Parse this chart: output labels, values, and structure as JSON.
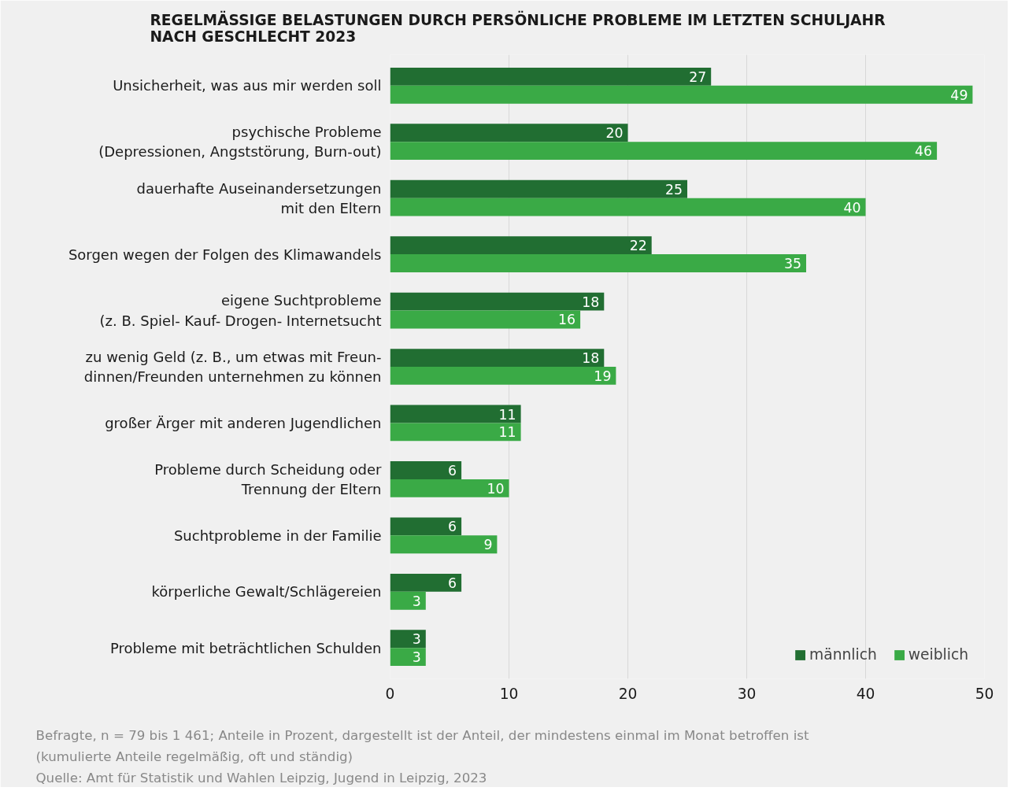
{
  "chart_data": {
    "type": "bar",
    "orientation": "horizontal",
    "title": "REGELMÄSSIGE BELASTUNGEN DURCH PERSÖNLICHE PROBLEME IM LETZTEN SCHULJAHR\nNACH GESCHLECHT 2023",
    "categories": [
      "Unsicherheit, was aus mir werden soll",
      "psychische Probleme\n(Depressionen, Angststörung, Burn-out)",
      "dauerhafte Auseinandersetzungen\nmit den Eltern",
      "Sorgen wegen der Folgen des Klimawandels",
      "eigene Suchtprobleme\n(z. B. Spiel- Kauf- Drogen- Internetsucht",
      "zu wenig Geld (z. B., um etwas mit Freun-\ndinnen/Freunden unternehmen zu können",
      "großer Ärger mit anderen Jugendlichen",
      "Probleme durch Scheidung oder\nTrennung der Eltern",
      "Suchtprobleme in der Familie",
      "körperliche Gewalt/Schlägereien",
      "Probleme mit beträchtlichen Schulden"
    ],
    "series": [
      {
        "name": "männlich",
        "color": "#216e32",
        "values": [
          27,
          20,
          25,
          22,
          18,
          18,
          11,
          6,
          6,
          6,
          3
        ]
      },
      {
        "name": "weiblich",
        "color": "#3aaa46",
        "values": [
          49,
          46,
          40,
          35,
          16,
          19,
          11,
          10,
          9,
          3,
          3
        ]
      }
    ],
    "xlim": [
      0,
      50
    ],
    "xticks": [
      0,
      10,
      20,
      30,
      40,
      50
    ],
    "grid": "x",
    "legend": "bottom right",
    "data_labels": true,
    "annotations": [
      "Befragte, n = 79 bis 1 461; Anteile in Prozent, dargestellt ist der Anteil, der mindestens einmal im Monat betroffen ist\n(kumulierte Anteile regelmäßig, oft und ständig)",
      "Quelle: Amt für Statistik und Wahlen Leipzig, Jugend in Leipzig, 2023"
    ]
  }
}
